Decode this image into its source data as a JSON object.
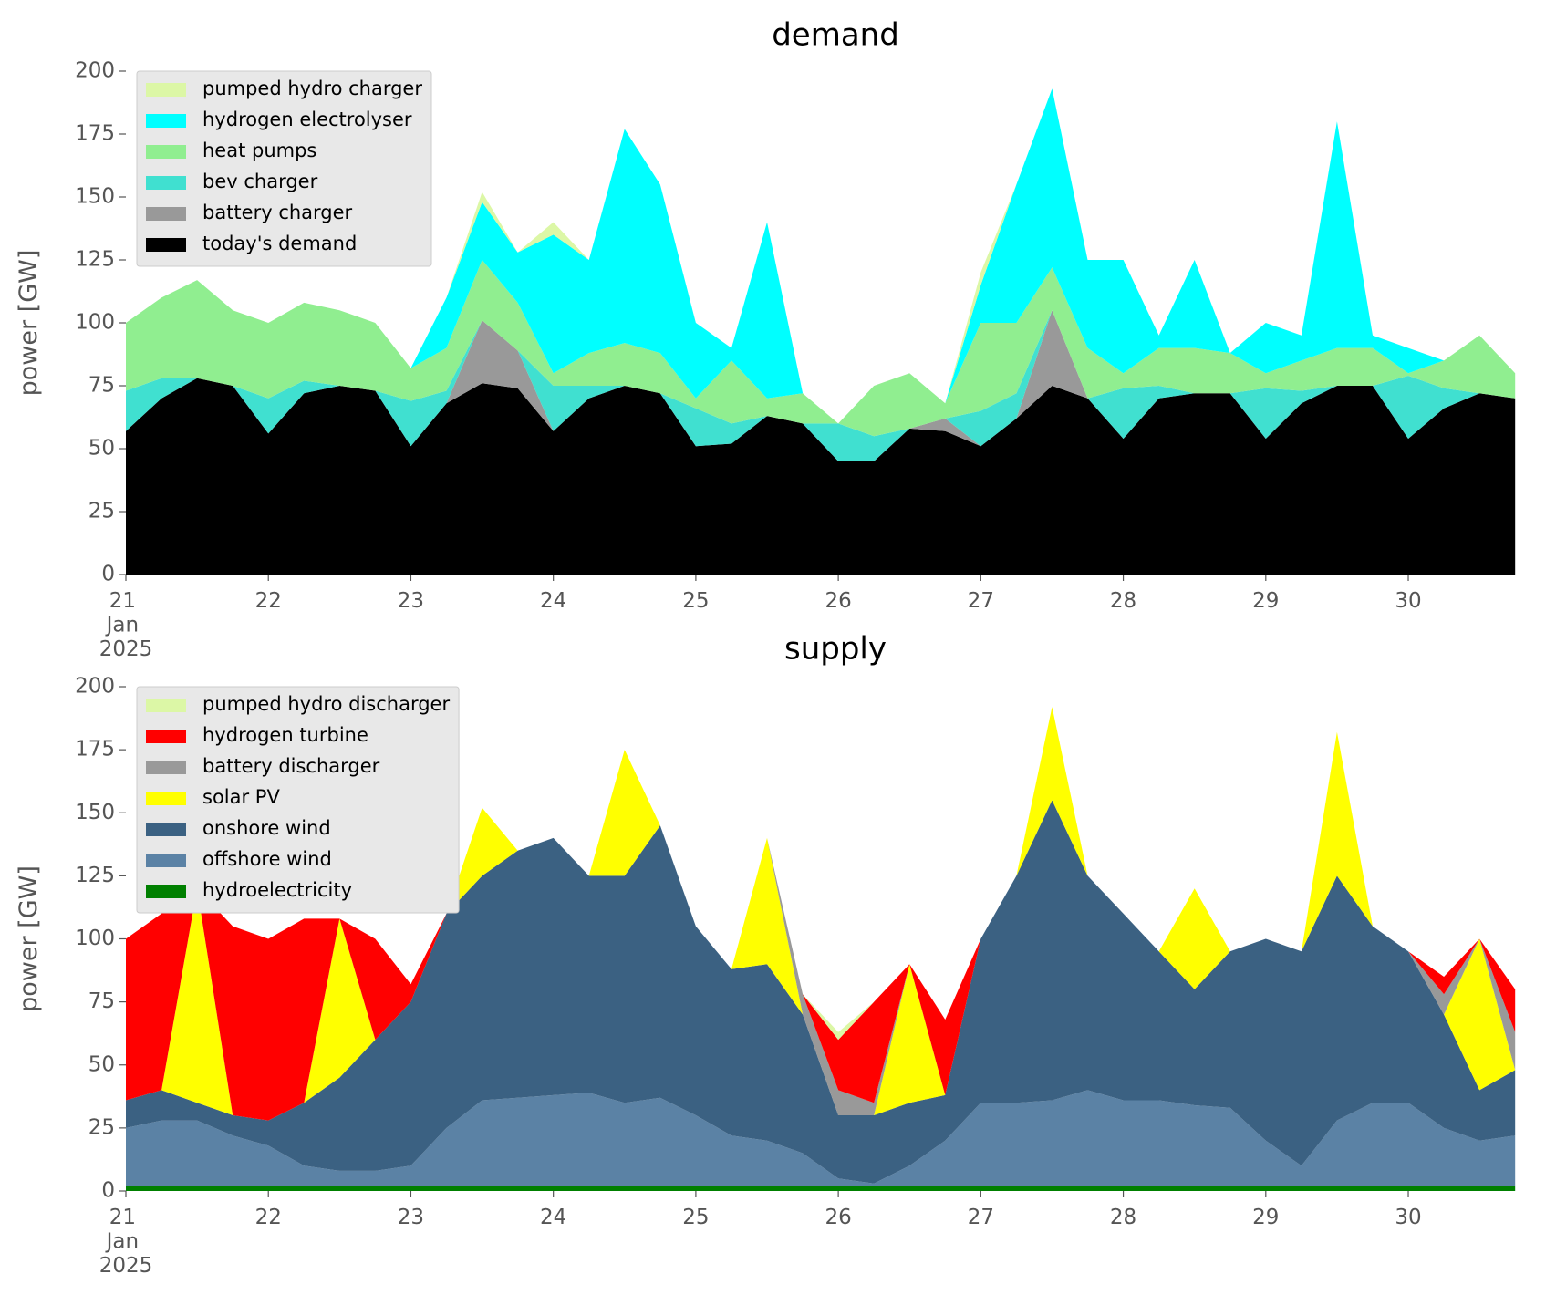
{
  "chart_data": [
    {
      "type": "area",
      "title": "demand",
      "ylabel": "power [GW]",
      "x": [
        21,
        21.25,
        21.5,
        21.75,
        22,
        22.25,
        22.5,
        22.75,
        23,
        23.25,
        23.5,
        23.75,
        24,
        24.25,
        24.5,
        24.75,
        25,
        25.25,
        25.5,
        25.75,
        26,
        26.25,
        26.5,
        26.75,
        27,
        27.25,
        27.5,
        27.75,
        28,
        28.25,
        28.5,
        28.75,
        29,
        29.25,
        29.5,
        29.75,
        30,
        30.25,
        30.5,
        30.75
      ],
      "xlim": [
        21,
        30.96
      ],
      "xticks": [
        {
          "value": 21,
          "label": "21\nJan\n2025"
        },
        22,
        23,
        24,
        25,
        26,
        27,
        28,
        29,
        30
      ],
      "ylim": [
        0,
        200
      ],
      "yticks": [
        0,
        25,
        50,
        75,
        100,
        125,
        150,
        175,
        200
      ],
      "legend": "upper left",
      "series": [
        {
          "name": "pumped hydro charger",
          "color": "#dcf7a6",
          "values": [
            0,
            0,
            0,
            0,
            0,
            0,
            0,
            0,
            0,
            0,
            4,
            0,
            5,
            0,
            0,
            0,
            0,
            0,
            0,
            0,
            0,
            0,
            0,
            0,
            5,
            0,
            0,
            0,
            0,
            0,
            0,
            0,
            0,
            0,
            0,
            0,
            0,
            0,
            0,
            0
          ]
        },
        {
          "name": "hydrogen electrolyser",
          "color": "#00ffff",
          "values": [
            0,
            0,
            0,
            0,
            0,
            0,
            0,
            0,
            0,
            20,
            23,
            20,
            55,
            37,
            85,
            67,
            30,
            5,
            70,
            0,
            0,
            0,
            0,
            0,
            15,
            55,
            71,
            35,
            45,
            5,
            35,
            0,
            20,
            10,
            90,
            5,
            10,
            0,
            0,
            0
          ]
        },
        {
          "name": "heat pumps",
          "color": "#90ee90",
          "values": [
            27,
            32,
            39,
            30,
            30,
            31,
            30,
            27,
            13,
            17,
            24,
            19,
            5,
            13,
            17,
            16,
            4,
            25,
            7,
            12,
            0,
            20,
            22,
            6,
            35,
            28,
            17,
            20,
            6,
            15,
            18,
            16,
            6,
            12,
            15,
            15,
            1,
            11,
            23,
            10
          ]
        },
        {
          "name": "bev charger",
          "color": "#40e0d0",
          "values": [
            16,
            8,
            0,
            0,
            14,
            5,
            0,
            0,
            18,
            5,
            0,
            0,
            18,
            5,
            0,
            0,
            15,
            8,
            0,
            0,
            15,
            10,
            0,
            0,
            14,
            10,
            0,
            0,
            20,
            5,
            0,
            0,
            20,
            5,
            0,
            0,
            25,
            8,
            0,
            0
          ]
        },
        {
          "name": "battery charger",
          "color": "#999999",
          "values": [
            0,
            0,
            0,
            0,
            0,
            0,
            0,
            0,
            0,
            0,
            25,
            15,
            0,
            0,
            0,
            0,
            0,
            0,
            0,
            0,
            0,
            0,
            0,
            5,
            0,
            0,
            30,
            0,
            0,
            0,
            0,
            0,
            0,
            0,
            0,
            0,
            0,
            0,
            0,
            0
          ]
        },
        {
          "name": "today's demand",
          "color": "#000000",
          "values": [
            57,
            70,
            78,
            75,
            56,
            72,
            75,
            73,
            51,
            68,
            76,
            74,
            57,
            70,
            75,
            72,
            51,
            52,
            63,
            60,
            45,
            45,
            58,
            57,
            51,
            62,
            75,
            70,
            54,
            70,
            72,
            72,
            54,
            68,
            75,
            75,
            54,
            66,
            72,
            70
          ]
        }
      ]
    },
    {
      "type": "area",
      "title": "supply",
      "ylabel": "power [GW]",
      "x": [
        21,
        21.25,
        21.5,
        21.75,
        22,
        22.25,
        22.5,
        22.75,
        23,
        23.25,
        23.5,
        23.75,
        24,
        24.25,
        24.5,
        24.75,
        25,
        25.25,
        25.5,
        25.75,
        26,
        26.25,
        26.5,
        26.75,
        27,
        27.25,
        27.5,
        27.75,
        28,
        28.25,
        28.5,
        28.75,
        29,
        29.25,
        29.5,
        29.75,
        30,
        30.25,
        30.5,
        30.75
      ],
      "xlim": [
        21,
        30.96
      ],
      "xticks": [
        {
          "value": 21,
          "label": "21\nJan\n2025"
        },
        22,
        23,
        24,
        25,
        26,
        27,
        28,
        29,
        30
      ],
      "ylim": [
        0,
        200
      ],
      "yticks": [
        0,
        25,
        50,
        75,
        100,
        125,
        150,
        175,
        200
      ],
      "legend": "upper left",
      "series": [
        {
          "name": "pumped hydro discharger",
          "color": "#dcf7a6",
          "values": [
            0,
            0,
            0,
            0,
            0,
            0,
            0,
            0,
            0,
            0,
            0,
            0,
            0,
            0,
            0,
            0,
            0,
            0,
            0,
            0,
            3,
            0,
            0,
            0,
            0,
            0,
            0,
            0,
            0,
            0,
            0,
            0,
            0,
            0,
            0,
            0,
            0,
            0,
            0,
            0
          ]
        },
        {
          "name": "hydrogen turbine",
          "color": "#ff0000",
          "values": [
            64,
            70,
            0,
            75,
            72,
            73,
            0,
            40,
            7,
            0,
            0,
            0,
            0,
            0,
            0,
            0,
            0,
            0,
            0,
            0,
            20,
            40,
            0,
            30,
            0,
            0,
            0,
            0,
            0,
            0,
            0,
            0,
            0,
            0,
            0,
            0,
            0,
            7,
            0,
            17
          ]
        },
        {
          "name": "battery discharger",
          "color": "#999999",
          "values": [
            0,
            0,
            0,
            0,
            0,
            0,
            0,
            0,
            0,
            0,
            0,
            0,
            0,
            0,
            0,
            0,
            0,
            0,
            0,
            8,
            10,
            5,
            0,
            0,
            0,
            0,
            0,
            0,
            0,
            0,
            0,
            0,
            0,
            0,
            0,
            0,
            0,
            8,
            0,
            15
          ]
        },
        {
          "name": "solar PV",
          "color": "#ffff00",
          "values": [
            0,
            0,
            85,
            0,
            0,
            0,
            63,
            0,
            0,
            0,
            27,
            0,
            0,
            0,
            50,
            0,
            0,
            0,
            50,
            0,
            0,
            0,
            55,
            0,
            0,
            0,
            37,
            0,
            0,
            0,
            40,
            0,
            0,
            0,
            57,
            0,
            0,
            0,
            60,
            0
          ]
        },
        {
          "name": "onshore wind",
          "color": "#3b6182",
          "values": [
            11,
            12,
            7,
            8,
            10,
            25,
            37,
            52,
            65,
            85,
            89,
            98,
            102,
            86,
            90,
            108,
            75,
            66,
            70,
            55,
            25,
            27,
            25,
            18,
            65,
            90,
            119,
            85,
            74,
            59,
            46,
            62,
            80,
            85,
            97,
            70,
            60,
            45,
            20,
            26
          ]
        },
        {
          "name": "offshore wind",
          "color": "#5b82a5",
          "values": [
            23,
            26,
            26,
            20,
            16,
            8,
            6,
            6,
            8,
            23,
            34,
            35,
            36,
            37,
            33,
            35,
            28,
            20,
            18,
            13,
            3,
            1,
            8,
            18,
            33,
            33,
            34,
            38,
            34,
            34,
            32,
            31,
            18,
            8,
            26,
            33,
            33,
            23,
            18,
            20
          ]
        },
        {
          "name": "hydroelectricity",
          "color": "#008000",
          "values": [
            2,
            2,
            2,
            2,
            2,
            2,
            2,
            2,
            2,
            2,
            2,
            2,
            2,
            2,
            2,
            2,
            2,
            2,
            2,
            2,
            2,
            2,
            2,
            2,
            2,
            2,
            2,
            2,
            2,
            2,
            2,
            2,
            2,
            2,
            2,
            2,
            2,
            2,
            2,
            2
          ]
        }
      ]
    }
  ]
}
